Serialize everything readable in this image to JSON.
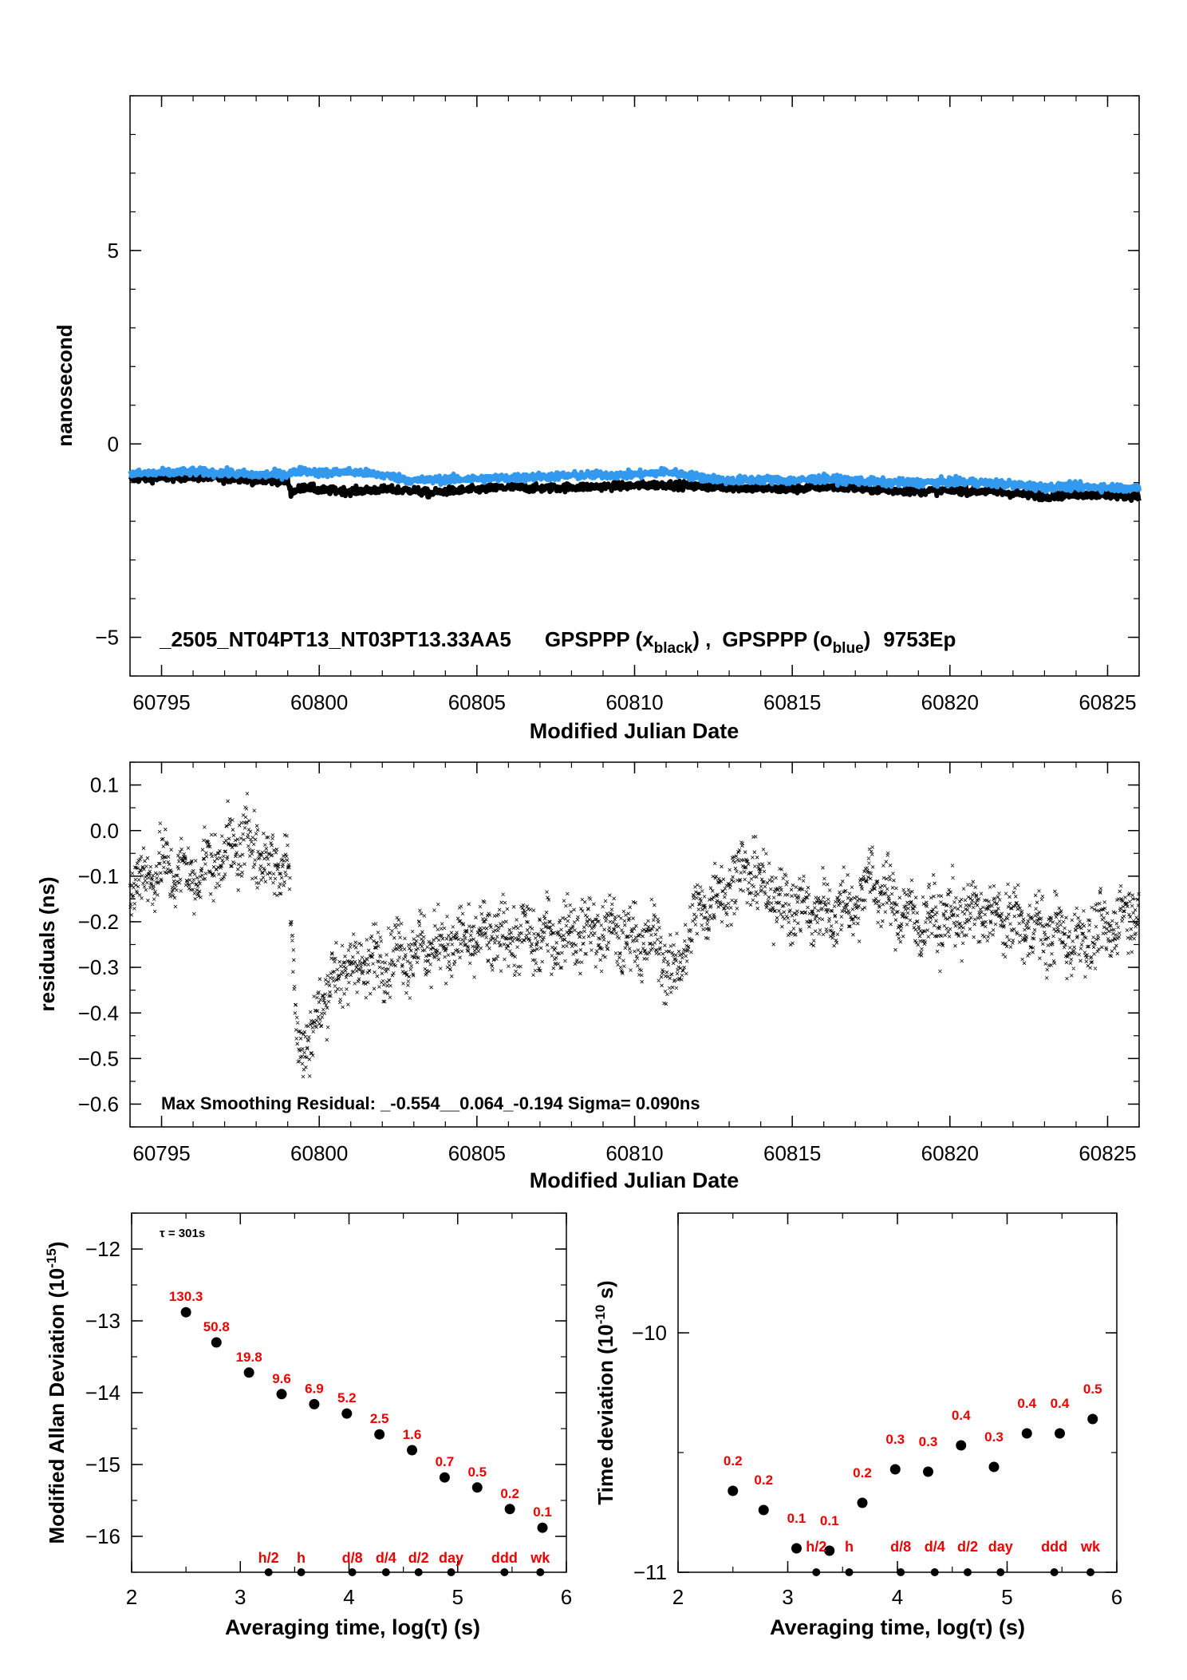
{
  "colors": {
    "black_series": "#000000",
    "blue_series": "#3399ee",
    "annotation_red": "#ee0000",
    "axis": "#000000"
  },
  "chart_data": [
    {
      "type": "line",
      "ylabel": "nanosecond",
      "xlabel": "Modified Julian Date",
      "xlim": [
        60794,
        60826
      ],
      "ylim": [
        -6,
        9
      ],
      "xticks": [
        60795,
        60800,
        60805,
        60810,
        60815,
        60820,
        60825
      ],
      "yticks": [
        -5,
        0,
        5
      ],
      "annotation": {
        "prefix": "_2505_NT04PT13_NT03PT13.33AA5",
        "s1": "GPSPPP (x",
        "s1_sub": "black",
        "s1_end": ") ,",
        "s2": "GPSPPP (o",
        "s2_sub": "blue",
        "s2_end": ")",
        "suffix": "9753Ep"
      },
      "series": [
        {
          "name": "black",
          "color": "#000000",
          "x": [
            60794.0,
            60795.0,
            60796.0,
            60797.0,
            60797.5,
            60798.0,
            60799.0,
            60799.1,
            60799.6,
            60800.0,
            60801.0,
            60802.0,
            60803.0,
            60803.5,
            60804.0,
            60805.0,
            60806.0,
            60807.0,
            60808.0,
            60809.0,
            60810.0,
            60811.0,
            60812.0,
            60813.0,
            60814.0,
            60815.0,
            60816.0,
            60817.0,
            60818.0,
            60819.0,
            60820.0,
            60821.0,
            60822.0,
            60823.0,
            60824.0,
            60825.0,
            60826.0
          ],
          "y": [
            -0.9,
            -0.88,
            -0.85,
            -0.9,
            -0.88,
            -0.95,
            -0.95,
            -1.25,
            -1.1,
            -1.2,
            -1.22,
            -1.18,
            -1.2,
            -1.28,
            -1.22,
            -1.18,
            -1.12,
            -1.15,
            -1.12,
            -1.1,
            -1.08,
            -1.05,
            -1.1,
            -1.12,
            -1.15,
            -1.18,
            -1.1,
            -1.15,
            -1.2,
            -1.22,
            -1.2,
            -1.22,
            -1.28,
            -1.35,
            -1.3,
            -1.32,
            -1.35
          ]
        },
        {
          "name": "blue",
          "color": "#3399ee",
          "x": [
            60794.0,
            60795.0,
            60796.0,
            60797.0,
            60798.0,
            60799.0,
            60799.5,
            60800.0,
            60801.0,
            60802.0,
            60803.0,
            60804.0,
            60805.0,
            60806.0,
            60807.0,
            60808.0,
            60809.0,
            60810.0,
            60811.0,
            60812.0,
            60813.0,
            60814.0,
            60815.0,
            60816.0,
            60817.0,
            60818.0,
            60819.0,
            60820.0,
            60821.0,
            60822.0,
            60823.0,
            60824.0,
            60825.0,
            60826.0
          ],
          "y": [
            -0.78,
            -0.75,
            -0.72,
            -0.75,
            -0.8,
            -0.78,
            -0.68,
            -0.75,
            -0.72,
            -0.8,
            -0.95,
            -0.92,
            -0.9,
            -0.88,
            -0.85,
            -0.82,
            -0.8,
            -0.8,
            -0.72,
            -0.85,
            -0.95,
            -0.92,
            -0.95,
            -0.9,
            -0.95,
            -1.0,
            -1.0,
            -0.98,
            -1.0,
            -1.05,
            -1.12,
            -1.1,
            -1.12,
            -1.15
          ]
        }
      ]
    },
    {
      "type": "scatter",
      "ylabel": "residuals (ns)",
      "xlabel": "Modified Julian Date",
      "xlim": [
        60794,
        60826
      ],
      "ylim": [
        -0.65,
        0.15
      ],
      "xticks": [
        60795,
        60800,
        60805,
        60810,
        60815,
        60820,
        60825
      ],
      "yticks": [
        0.1,
        0.0,
        -0.1,
        -0.2,
        -0.3,
        -0.4,
        -0.5,
        -0.6
      ],
      "ytick_labels": [
        "0.1",
        "0.0",
        "−0.1",
        "−0.2",
        "−0.3",
        "−0.4",
        "−0.5",
        "−0.6"
      ],
      "annotation": "Max Smoothing Residual: _-0.554__0.064_-0.194  Sigma= 0.090ns",
      "trend": {
        "x": [
          60794.0,
          60795.0,
          60796.0,
          60797.0,
          60797.8,
          60798.5,
          60799.0,
          60799.3,
          60799.7,
          60800.0,
          60800.5,
          60801.0,
          60802.0,
          60803.0,
          60804.0,
          60805.0,
          60806.0,
          60807.0,
          60808.0,
          60809.0,
          60810.0,
          60810.8,
          60811.2,
          60812.0,
          60813.0,
          60813.5,
          60814.0,
          60815.0,
          60816.0,
          60817.0,
          60817.5,
          60818.0,
          60819.0,
          60820.0,
          60821.0,
          60822.0,
          60823.0,
          60824.0,
          60825.0,
          60826.0
        ],
        "y": [
          -0.12,
          -0.08,
          -0.1,
          -0.05,
          -0.02,
          -0.08,
          -0.06,
          -0.45,
          -0.48,
          -0.38,
          -0.32,
          -0.3,
          -0.28,
          -0.26,
          -0.25,
          -0.24,
          -0.23,
          -0.24,
          -0.22,
          -0.22,
          -0.24,
          -0.25,
          -0.33,
          -0.18,
          -0.12,
          -0.08,
          -0.12,
          -0.17,
          -0.18,
          -0.16,
          -0.1,
          -0.15,
          -0.2,
          -0.19,
          -0.18,
          -0.2,
          -0.22,
          -0.24,
          -0.22,
          -0.15
        ]
      }
    },
    {
      "type": "scatter",
      "ylabel": "Modified Allan Deviation (10",
      "ylabel_sup": "-15",
      "ylabel_end": ")",
      "xlabel": "Averaging time, log(τ) (s)",
      "xlim": [
        2,
        6
      ],
      "ylim": [
        -16.5,
        -11.5
      ],
      "xticks": [
        2,
        3,
        4,
        5,
        6
      ],
      "yticks": [
        -12,
        -13,
        -14,
        -15,
        -16
      ],
      "tau_label": "τ = 301s",
      "points_x": [
        2.5,
        2.78,
        3.08,
        3.38,
        3.68,
        3.98,
        4.28,
        4.58,
        4.88,
        5.18,
        5.48,
        5.78
      ],
      "points_y": [
        -12.88,
        -13.3,
        -13.72,
        -14.02,
        -14.16,
        -14.29,
        -14.58,
        -14.8,
        -15.18,
        -15.32,
        -15.62,
        -15.88
      ],
      "point_labels": [
        "130.3",
        "50.8",
        "19.8",
        "9.6",
        "6.9",
        "5.2",
        "2.5",
        "1.6",
        "0.7",
        "0.5",
        "0.2",
        "0.1"
      ],
      "markers_x": [
        3.26,
        3.56,
        4.03,
        4.34,
        4.64,
        4.94,
        5.43,
        5.76
      ],
      "markers": [
        "h/2",
        "h",
        "d/8",
        "d/4",
        "d/2",
        "day",
        "ddd",
        "wk"
      ]
    },
    {
      "type": "scatter",
      "ylabel": "Time deviation (10",
      "ylabel_sup": "-10",
      "ylabel_end": " s)",
      "xlabel": "Averaging time, log(τ) (s)",
      "xlim": [
        2,
        6
      ],
      "ylim": [
        -11,
        -9.5
      ],
      "xticks": [
        2,
        3,
        4,
        5,
        6
      ],
      "yticks": [
        -10,
        -11
      ],
      "points_x": [
        2.5,
        2.78,
        3.08,
        3.38,
        3.68,
        3.98,
        4.28,
        4.58,
        4.88,
        5.18,
        5.48,
        5.78
      ],
      "points_y": [
        -10.66,
        -10.74,
        -10.9,
        -10.91,
        -10.71,
        -10.57,
        -10.58,
        -10.47,
        -10.56,
        -10.42,
        -10.42,
        -10.36
      ],
      "point_labels": [
        "0.2",
        "0.2",
        "0.1",
        "0.1",
        "0.2",
        "0.3",
        "0.3",
        "0.4",
        "0.3",
        "0.4",
        "0.4",
        "0.5"
      ],
      "markers_x": [
        3.26,
        3.56,
        4.03,
        4.34,
        4.64,
        4.94,
        5.43,
        5.76
      ],
      "markers": [
        "h/2",
        "h",
        "d/8",
        "d/4",
        "d/2",
        "day",
        "ddd",
        "wk"
      ]
    }
  ]
}
